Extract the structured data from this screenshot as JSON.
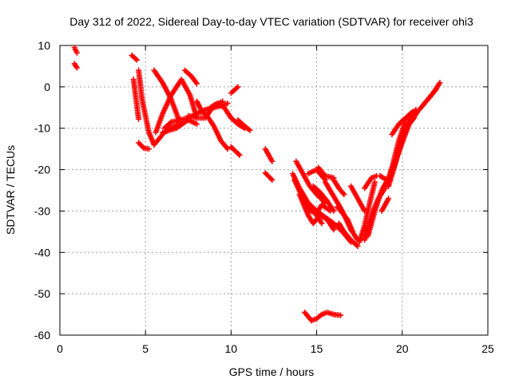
{
  "chart_data": {
    "type": "scatter",
    "title": "Day 312 of 2022, Sidereal Day-to-day VTEC variation (SDTVAR) for receiver ohi3",
    "xlabel": "GPS time / hours",
    "ylabel": "SDTVAR / TECUs",
    "xlim": [
      0,
      25
    ],
    "ylim": [
      -60,
      10
    ],
    "xticks": [
      0,
      5,
      10,
      15,
      20,
      25
    ],
    "yticks": [
      -60,
      -50,
      -40,
      -30,
      -20,
      -10,
      0,
      10
    ],
    "grid": true,
    "marker": "+",
    "colors": {
      "points": "#ff0000",
      "axes": "#000000",
      "grid": "#a0a0a0",
      "background": "#ffffff"
    },
    "tracks": [
      {
        "name": "track-01",
        "x": [
          0.85,
          1.0
        ],
        "y": [
          9.5,
          8.2
        ]
      },
      {
        "name": "track-02",
        "x": [
          0.85,
          1.0
        ],
        "y": [
          5.6,
          4.6
        ]
      },
      {
        "name": "track-03",
        "x": [
          4.2,
          4.5
        ],
        "y": [
          7.6,
          6.5
        ]
      },
      {
        "name": "track-04",
        "x": [
          4.3,
          4.6
        ],
        "y": [
          1.8,
          -7.8
        ]
      },
      {
        "name": "track-05",
        "x": [
          4.6,
          4.8,
          5.2,
          5.5,
          5.8,
          6.1,
          6.4,
          6.7,
          7.0
        ],
        "y": [
          4.0,
          -3.0,
          -11.0,
          -14.0,
          -12.5,
          -11.0,
          -10.0,
          -9.5,
          -9.0
        ]
      },
      {
        "name": "track-06",
        "x": [
          4.6,
          4.9,
          5.2
        ],
        "y": [
          -13.5,
          -14.8,
          -15.0
        ]
      },
      {
        "name": "track-07",
        "x": [
          5.5,
          6.0,
          6.5,
          7.0
        ],
        "y": [
          4.0,
          1.0,
          -3.0,
          -8.5
        ]
      },
      {
        "name": "track-08",
        "x": [
          5.6,
          6.0,
          6.5,
          7.1,
          7.6,
          8.0
        ],
        "y": [
          -11.0,
          -6.5,
          -2.0,
          1.8,
          -2.0,
          -7.5
        ]
      },
      {
        "name": "track-09",
        "x": [
          6.0,
          6.8,
          7.5,
          8.0
        ],
        "y": [
          -11.0,
          -10.0,
          -8.0,
          -9.0
        ]
      },
      {
        "name": "track-10",
        "x": [
          6.1,
          6.5,
          7.0,
          7.5,
          8.0,
          8.5,
          9.0,
          9.5,
          9.8
        ],
        "y": [
          -10.0,
          -8.5,
          -8.0,
          -7.5,
          -6.5,
          -5.5,
          -5.0,
          -4.5,
          -4.0
        ]
      },
      {
        "name": "track-11",
        "x": [
          7.3,
          7.7,
          8.0
        ],
        "y": [
          4.0,
          2.5,
          0.8
        ]
      },
      {
        "name": "track-12",
        "x": [
          7.5,
          8.0,
          8.5,
          9.0,
          9.5
        ],
        "y": [
          -7.0,
          -7.5,
          -7.5,
          -4.5,
          -3.5
        ]
      },
      {
        "name": "track-13",
        "x": [
          8.0,
          8.3,
          8.6,
          9.0,
          9.4,
          9.8
        ],
        "y": [
          -3.5,
          -6.0,
          -7.0,
          -9.5,
          -13.0,
          -15.0
        ]
      },
      {
        "name": "track-14",
        "x": [
          8.8,
          9.2,
          9.6,
          10.0
        ],
        "y": [
          -5.0,
          -4.0,
          -5.0,
          -7.5
        ]
      },
      {
        "name": "track-15",
        "x": [
          10.0,
          10.4
        ],
        "y": [
          -1.5,
          0.0
        ]
      },
      {
        "name": "track-16",
        "x": [
          10.0,
          10.4,
          10.8
        ],
        "y": [
          -7.5,
          -9.0,
          -10.0
        ]
      },
      {
        "name": "track-17",
        "x": [
          10.4,
          10.8,
          11.1
        ],
        "y": [
          -8.0,
          -9.5,
          -10.5
        ]
      },
      {
        "name": "track-18",
        "x": [
          10.0,
          10.5
        ],
        "y": [
          -14.5,
          -16.5
        ]
      },
      {
        "name": "track-19",
        "x": [
          12.0,
          12.4
        ],
        "y": [
          -15.0,
          -18.0
        ]
      },
      {
        "name": "track-20",
        "x": [
          12.0,
          12.4
        ],
        "y": [
          -20.8,
          -22.5
        ]
      },
      {
        "name": "track-21",
        "x": [
          13.8,
          14.2,
          14.6,
          15.0,
          15.5
        ],
        "y": [
          -18.0,
          -21.0,
          -24.0,
          -26.0,
          -28.0
        ]
      },
      {
        "name": "track-22",
        "x": [
          13.6,
          14.0,
          14.5,
          15.0,
          15.5,
          16.0,
          16.5,
          17.0
        ],
        "y": [
          -21.0,
          -24.5,
          -28.0,
          -30.0,
          -31.5,
          -33.0,
          -35.0,
          -37.5
        ]
      },
      {
        "name": "track-23",
        "x": [
          13.7,
          14.2,
          14.6,
          15.0,
          15.3,
          15.8
        ],
        "y": [
          -22.5,
          -27.0,
          -30.0,
          -30.5,
          -28.5,
          -30.0
        ]
      },
      {
        "name": "track-24",
        "x": [
          14.0,
          14.5,
          14.8,
          15.2,
          15.6,
          16.0
        ],
        "y": [
          -26.0,
          -31.0,
          -33.0,
          -31.0,
          -32.0,
          -34.5
        ]
      },
      {
        "name": "track-25",
        "x": [
          14.5,
          15.0,
          15.5
        ],
        "y": [
          -21.0,
          -20.0,
          -22.5
        ]
      },
      {
        "name": "track-26",
        "x": [
          14.5,
          14.9,
          15.3
        ],
        "y": [
          -28.0,
          -30.5,
          -33.0
        ]
      },
      {
        "name": "track-27",
        "x": [
          14.8,
          15.2,
          15.6,
          16.0
        ],
        "y": [
          -24.0,
          -25.5,
          -27.5,
          -30.0
        ]
      },
      {
        "name": "track-28",
        "x": [
          15.1,
          15.5,
          16.0
        ],
        "y": [
          -19.5,
          -21.5,
          -22.0
        ]
      },
      {
        "name": "track-29",
        "x": [
          15.5,
          16.0,
          16.5,
          17.0,
          17.4
        ],
        "y": [
          -23.0,
          -26.5,
          -30.0,
          -34.5,
          -37.0
        ]
      },
      {
        "name": "track-30",
        "x": [
          16.0,
          16.3,
          16.6
        ],
        "y": [
          -22.5,
          -24.5,
          -26.0
        ]
      },
      {
        "name": "track-31",
        "x": [
          16.2,
          16.5,
          16.8,
          17.1
        ],
        "y": [
          -29.0,
          -30.5,
          -32.0,
          -35.0
        ]
      },
      {
        "name": "track-32",
        "x": [
          16.3,
          16.6,
          17.0,
          17.4
        ],
        "y": [
          -33.0,
          -35.0,
          -37.0,
          -38.5
        ]
      },
      {
        "name": "track-33",
        "x": [
          17.0,
          17.4,
          17.8
        ],
        "y": [
          -24.0,
          -27.0,
          -30.0
        ]
      },
      {
        "name": "track-34",
        "x": [
          17.5,
          17.8,
          18.1,
          18.4
        ],
        "y": [
          -37.5,
          -33.5,
          -28.0,
          -23.0
        ]
      },
      {
        "name": "track-35",
        "x": [
          17.8,
          18.2,
          18.6,
          19.0,
          19.4,
          19.8,
          20.2
        ],
        "y": [
          -37.0,
          -31.0,
          -27.0,
          -24.5,
          -19.5,
          -13.0,
          -8.0
        ]
      },
      {
        "name": "track-36",
        "x": [
          17.8,
          18.2,
          18.5
        ],
        "y": [
          -24.5,
          -22.0,
          -21.5
        ]
      },
      {
        "name": "track-37",
        "x": [
          18.0,
          18.4,
          18.8,
          19.2,
          19.6,
          20.0,
          20.4,
          20.9
        ],
        "y": [
          -36.0,
          -30.0,
          -25.0,
          -22.0,
          -18.0,
          -13.5,
          -9.0,
          -6.0
        ]
      },
      {
        "name": "track-38",
        "x": [
          18.8,
          19.2
        ],
        "y": [
          -30.0,
          -27.0
        ]
      },
      {
        "name": "track-39",
        "x": [
          18.7,
          19.1
        ],
        "y": [
          -21.5,
          -22.5
        ]
      },
      {
        "name": "track-40",
        "x": [
          19.2,
          19.6,
          20.0,
          20.4,
          20.8
        ],
        "y": [
          -24.0,
          -18.5,
          -12.5,
          -8.0,
          -5.5
        ]
      },
      {
        "name": "track-41",
        "x": [
          19.5,
          19.9,
          20.3,
          20.7
        ],
        "y": [
          -19.5,
          -14.0,
          -9.5,
          -7.5
        ]
      },
      {
        "name": "track-42",
        "x": [
          19.4,
          19.8,
          20.2,
          20.6
        ],
        "y": [
          -11.5,
          -9.0,
          -7.5,
          -6.0
        ]
      },
      {
        "name": "track-43",
        "x": [
          21.0,
          21.4,
          21.8,
          22.2
        ],
        "y": [
          -5.5,
          -3.5,
          -1.5,
          1.0
        ]
      },
      {
        "name": "track-44",
        "x": [
          21.2,
          21.6,
          22.0
        ],
        "y": [
          -4.5,
          -2.5,
          -0.5
        ]
      },
      {
        "name": "track-45",
        "x": [
          14.3,
          14.7,
          15.0,
          15.3,
          15.6,
          16.0,
          16.4
        ],
        "y": [
          -54.5,
          -56.5,
          -56.0,
          -55.0,
          -54.5,
          -55.0,
          -55.2
        ]
      }
    ]
  }
}
